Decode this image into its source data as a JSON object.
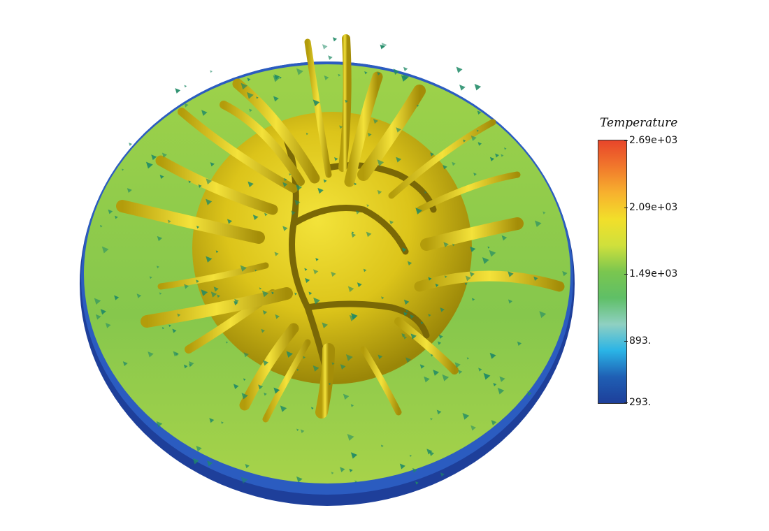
{
  "figure": {
    "colors": {
      "plume_yellow": "#e8d21c",
      "plume_shadow": "#9d8b0a",
      "mantle_green": "#8ccb4a",
      "mantle_light": "#c8e04a",
      "crust_blue": "#2040a0",
      "flake_teal": "#1f8a66"
    }
  },
  "legend": {
    "title": "Temperature",
    "ticks": [
      "2.69e+03",
      "2.09e+03",
      "1.49e+03",
      "893.",
      "293."
    ],
    "gradient": [
      "#e8452a",
      "#f1782c",
      "#f7b12e",
      "#f2df2a",
      "#cfe03c",
      "#7ac64f",
      "#5fbf67",
      "#8fd0c2",
      "#2ab4e6",
      "#1f5fb4",
      "#1e3f9a"
    ]
  }
}
